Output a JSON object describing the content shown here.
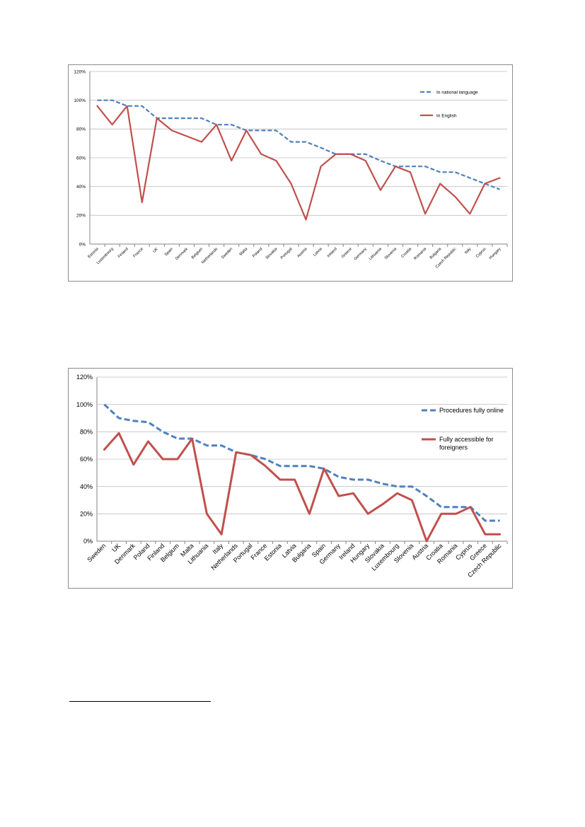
{
  "colors": {
    "national": "#4f81bd",
    "english": "#c0504d",
    "grid": "#bfbfbf",
    "axis": "#868686",
    "text": "#000000"
  },
  "chart_data": [
    {
      "type": "line",
      "legend_position": "right",
      "grid": true,
      "ylim": [
        0,
        120
      ],
      "y_ticks": [
        "0%",
        "20%",
        "40%",
        "60%",
        "80%",
        "100%",
        "120%"
      ],
      "categories": [
        "Estonia",
        "Luxembourg",
        "Finland",
        "France",
        "UK",
        "Spain",
        "Denmark",
        "Belgium",
        "Netherlands",
        "Sweden",
        "Malta",
        "Poland",
        "Slovakia",
        "Portugal",
        "Austria",
        "Latvia",
        "Ireland",
        "Greece",
        "Germany",
        "Lithuania",
        "Slovenia",
        "Croatia",
        "Romania",
        "Bulgaria",
        "Czech Republic",
        "Italy",
        "Cyprus",
        "Hungary"
      ],
      "series": [
        {
          "name": "In national language",
          "style": "dashed",
          "color": "#4f81bd",
          "values": [
            100,
            100,
            96,
            96,
            87.5,
            87.5,
            87.5,
            87.5,
            83,
            83,
            79,
            79,
            79,
            71,
            71,
            67,
            62.5,
            62.5,
            62.5,
            58,
            54,
            54,
            54,
            50,
            50,
            46,
            42,
            38
          ]
        },
        {
          "name": "In English",
          "style": "solid",
          "color": "#c0504d",
          "values": [
            96,
            83,
            96,
            29,
            87.5,
            79,
            75,
            71,
            83,
            58,
            79,
            62.5,
            58,
            42,
            17,
            54,
            62.5,
            62.5,
            58,
            37.5,
            54,
            50,
            21,
            42,
            33,
            21,
            42,
            46
          ]
        }
      ]
    },
    {
      "type": "line",
      "legend_position": "right",
      "grid": true,
      "ylim": [
        0,
        120
      ],
      "y_ticks": [
        "0%",
        "20%",
        "40%",
        "60%",
        "80%",
        "100%",
        "120%"
      ],
      "categories": [
        "Sweden",
        "UK",
        "Denmark",
        "Poland",
        "Finland",
        "Belgium",
        "Malta",
        "Lithuania",
        "Italy",
        "Netherlands",
        "Portugal",
        "France",
        "Estonia",
        "Latvia",
        "Bulgaria",
        "Spain",
        "Germany",
        "Ireland",
        "Hungary",
        "Slovakia",
        "Luxembourg",
        "Slovenia",
        "Austria",
        "Croatia",
        "Romania",
        "Cyprus",
        "Greece",
        "Czech Republic"
      ],
      "series": [
        {
          "name": "Procedures fully online",
          "style": "dashed",
          "color": "#4f81bd",
          "values": [
            100,
            90,
            88,
            87,
            80,
            75,
            75,
            70,
            70,
            65,
            63,
            60,
            55,
            55,
            55,
            53,
            47,
            45,
            45,
            42,
            40,
            40,
            33,
            25,
            25,
            25,
            15,
            15
          ]
        },
        {
          "name": "Fully accessible for foreigners",
          "style": "solid",
          "color": "#c0504d",
          "values": [
            67,
            79,
            56,
            73,
            60,
            60,
            75,
            20,
            5,
            65,
            63,
            55,
            45,
            45,
            20,
            53,
            33,
            35,
            20,
            27,
            35,
            30,
            0,
            20,
            20,
            25,
            5,
            5
          ]
        }
      ]
    }
  ]
}
